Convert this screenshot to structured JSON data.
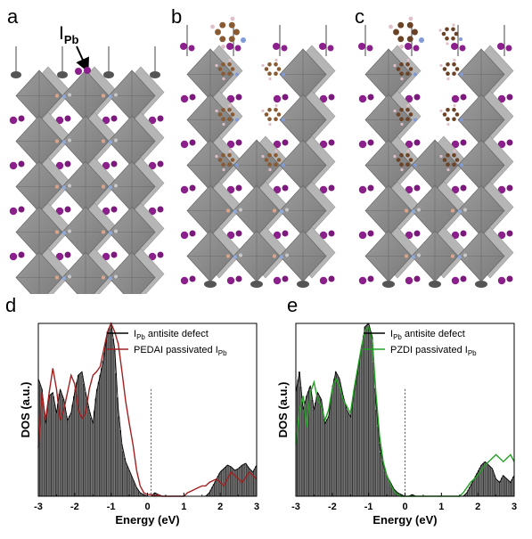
{
  "panel_letters": {
    "a": "a",
    "b": "b",
    "c": "c",
    "d": "d",
    "e": "e"
  },
  "annotation": {
    "main": "I",
    "sub": "Pb"
  },
  "chart_data": [
    {
      "type": "area",
      "panel": "d",
      "xlabel": "Energy (eV)",
      "ylabel": "DOS (a.u.)",
      "xlim": [
        -3,
        3
      ],
      "xticks": [
        "-3",
        "-2",
        "-1",
        "0",
        "1",
        "2",
        "3"
      ],
      "fermi_level": 0.1,
      "legend_position": "top-right",
      "series": [
        {
          "name_main": "I",
          "name_sub": "Pb",
          "name_rest": " antisite defect",
          "style": "grey filled bars",
          "color": "#000000",
          "x": [
            -3,
            -2.9,
            -2.8,
            -2.7,
            -2.6,
            -2.5,
            -2.4,
            -2.3,
            -2.2,
            -2.1,
            -2,
            -1.9,
            -1.8,
            -1.7,
            -1.6,
            -1.5,
            -1.4,
            -1.3,
            -1.2,
            -1.1,
            -1,
            -0.9,
            -0.8,
            -0.7,
            -0.6,
            -0.5,
            -0.4,
            -0.3,
            -0.2,
            -0.1,
            0,
            0.1,
            0.2,
            0.3,
            0.4,
            0.5,
            0.6,
            0.7,
            0.8,
            0.9,
            1,
            1.1,
            1.2,
            1.3,
            1.4,
            1.5,
            1.6,
            1.7,
            1.8,
            1.9,
            2,
            2.1,
            2.2,
            2.3,
            2.4,
            2.5,
            2.6,
            2.7,
            2.8,
            2.9,
            3
          ],
          "y": [
            0.68,
            0.62,
            0.42,
            0.58,
            0.6,
            0.48,
            0.62,
            0.56,
            0.44,
            0.48,
            0.6,
            0.7,
            0.72,
            0.6,
            0.5,
            0.42,
            0.6,
            0.7,
            0.8,
            0.95,
            1.0,
            0.85,
            0.5,
            0.3,
            0.2,
            0.15,
            0.1,
            0.05,
            0.02,
            0.01,
            0.0,
            0.0,
            0.02,
            0.01,
            0.0,
            0.0,
            0.0,
            0.0,
            0.0,
            0.0,
            0.0,
            0.0,
            0.0,
            0.0,
            0.0,
            0.0,
            0.0,
            0.02,
            0.06,
            0.1,
            0.14,
            0.16,
            0.18,
            0.17,
            0.15,
            0.16,
            0.18,
            0.19,
            0.16,
            0.14,
            0.18
          ]
        },
        {
          "name_main": "PEDAI passivated I",
          "name_sub": "Pb",
          "name_rest": "",
          "style": "line",
          "color": "#a02020",
          "x": [
            -3,
            -2.9,
            -2.8,
            -2.7,
            -2.6,
            -2.5,
            -2.4,
            -2.3,
            -2.2,
            -2.1,
            -2,
            -1.9,
            -1.8,
            -1.7,
            -1.6,
            -1.5,
            -1.4,
            -1.3,
            -1.2,
            -1.1,
            -1,
            -0.9,
            -0.8,
            -0.7,
            -0.6,
            -0.5,
            -0.4,
            -0.3,
            -0.2,
            -0.1,
            0,
            0.1,
            0.2,
            0.3,
            0.4,
            0.5,
            0.6,
            0.7,
            0.8,
            0.9,
            1,
            1.1,
            1.2,
            1.3,
            1.4,
            1.5,
            1.6,
            1.7,
            1.8,
            1.9,
            2,
            2.1,
            2.2,
            2.3,
            2.4,
            2.5,
            2.6,
            2.7,
            2.8,
            2.9,
            3
          ],
          "y": [
            0.28,
            0.6,
            0.44,
            0.6,
            0.74,
            0.62,
            0.44,
            0.5,
            0.6,
            0.7,
            0.65,
            0.5,
            0.45,
            0.48,
            0.62,
            0.7,
            0.72,
            0.75,
            0.85,
            0.95,
            1.0,
            0.95,
            0.88,
            0.72,
            0.55,
            0.42,
            0.3,
            0.15,
            0.06,
            0.02,
            0.01,
            0.01,
            0.0,
            0.01,
            0.0,
            0.0,
            0.0,
            0.0,
            0.0,
            0.0,
            0.0,
            0.02,
            0.03,
            0.04,
            0.05,
            0.06,
            0.06,
            0.08,
            0.09,
            0.1,
            0.08,
            0.06,
            0.1,
            0.14,
            0.12,
            0.1,
            0.08,
            0.11,
            0.14,
            0.12,
            0.1
          ]
        }
      ]
    },
    {
      "type": "area",
      "panel": "e",
      "xlabel": "Energy (eV)",
      "ylabel": "DOS (a.u.)",
      "xlim": [
        -3,
        3
      ],
      "xticks": [
        "-3",
        "-2",
        "-1",
        "0",
        "1",
        "2",
        "3"
      ],
      "fermi_level": 0.0,
      "legend_position": "top-right",
      "series": [
        {
          "name_main": "I",
          "name_sub": "Pb",
          "name_rest": " antisite defect",
          "style": "grey filled bars",
          "color": "#000000",
          "x": [
            -3,
            -2.9,
            -2.8,
            -2.7,
            -2.6,
            -2.5,
            -2.4,
            -2.3,
            -2.2,
            -2.1,
            -2,
            -1.9,
            -1.8,
            -1.7,
            -1.6,
            -1.5,
            -1.4,
            -1.3,
            -1.2,
            -1.1,
            -1,
            -0.9,
            -0.8,
            -0.7,
            -0.6,
            -0.5,
            -0.4,
            -0.3,
            -0.2,
            -0.1,
            0,
            0.1,
            0.2,
            0.3,
            0.4,
            0.5,
            0.6,
            0.7,
            0.8,
            0.9,
            1,
            1.1,
            1.2,
            1.3,
            1.4,
            1.5,
            1.6,
            1.7,
            1.8,
            1.9,
            2,
            2.1,
            2.2,
            2.3,
            2.4,
            2.5,
            2.6,
            2.7,
            2.8,
            2.9,
            3
          ],
          "y": [
            0.6,
            0.72,
            0.5,
            0.58,
            0.64,
            0.5,
            0.6,
            0.56,
            0.42,
            0.46,
            0.62,
            0.72,
            0.68,
            0.58,
            0.5,
            0.46,
            0.6,
            0.72,
            0.85,
            0.98,
            1.0,
            0.92,
            0.55,
            0.3,
            0.18,
            0.12,
            0.08,
            0.04,
            0.02,
            0.01,
            0.0,
            0.0,
            0.01,
            0.0,
            0.0,
            0.0,
            0.0,
            0.0,
            0.0,
            0.0,
            0.0,
            0.0,
            0.0,
            0.0,
            0.0,
            0.0,
            0.0,
            0.02,
            0.06,
            0.1,
            0.14,
            0.18,
            0.2,
            0.18,
            0.16,
            0.1,
            0.08,
            0.12,
            0.1,
            0.08,
            0.12
          ]
        },
        {
          "name_main": "PZDI passivated I",
          "name_sub": "Pb",
          "name_rest": "",
          "style": "line",
          "color": "#22a022",
          "x": [
            -3,
            -2.9,
            -2.8,
            -2.7,
            -2.6,
            -2.5,
            -2.4,
            -2.3,
            -2.2,
            -2.1,
            -2,
            -1.9,
            -1.8,
            -1.7,
            -1.6,
            -1.5,
            -1.4,
            -1.3,
            -1.2,
            -1.1,
            -1,
            -0.9,
            -0.8,
            -0.7,
            -0.6,
            -0.5,
            -0.4,
            -0.3,
            -0.2,
            -0.1,
            0,
            0.1,
            0.2,
            0.3,
            0.4,
            0.5,
            0.6,
            0.7,
            0.8,
            0.9,
            1,
            1.1,
            1.2,
            1.3,
            1.4,
            1.5,
            1.6,
            1.7,
            1.8,
            1.9,
            2,
            2.1,
            2.2,
            2.3,
            2.4,
            2.5,
            2.6,
            2.7,
            2.8,
            2.9,
            3
          ],
          "y": [
            0.3,
            0.5,
            0.58,
            0.4,
            0.6,
            0.66,
            0.56,
            0.52,
            0.44,
            0.5,
            0.62,
            0.68,
            0.64,
            0.56,
            0.52,
            0.48,
            0.62,
            0.74,
            0.86,
            0.96,
            0.98,
            0.9,
            0.6,
            0.35,
            0.2,
            0.12,
            0.07,
            0.03,
            0.01,
            0.0,
            0.0,
            0.0,
            0.0,
            0.0,
            0.0,
            0.0,
            0.0,
            0.0,
            0.0,
            0.0,
            0.0,
            0.0,
            0.0,
            0.0,
            0.0,
            0.0,
            0.02,
            0.05,
            0.08,
            0.1,
            0.12,
            0.15,
            0.18,
            0.2,
            0.22,
            0.24,
            0.22,
            0.2,
            0.22,
            0.24,
            0.2
          ]
        }
      ]
    }
  ]
}
